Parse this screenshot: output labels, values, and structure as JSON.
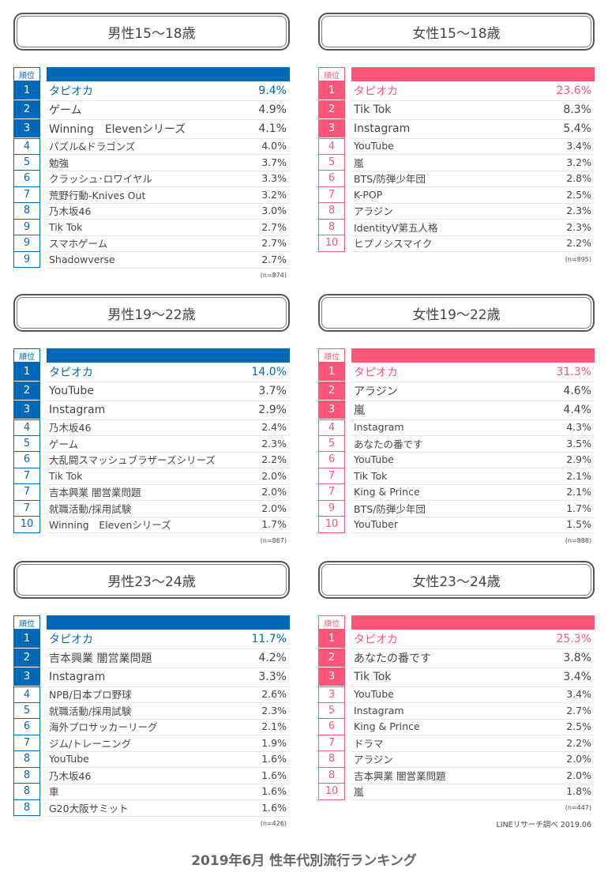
{
  "colors": {
    "male": "#0068b7",
    "female": "#fb5677"
  },
  "rank_header": "順位",
  "panels": [
    {
      "gender": "male",
      "title": "男性15〜18歳",
      "n": "(n=874)",
      "rows": [
        [
          "1",
          "タピオカ",
          "9.4%"
        ],
        [
          "2",
          "ゲーム",
          "4.9%"
        ],
        [
          "3",
          "Winning　Elevenシリーズ",
          "4.1%"
        ],
        [
          "4",
          "パズル&ドラゴンズ",
          "4.0%"
        ],
        [
          "5",
          "勉強",
          "3.7%"
        ],
        [
          "6",
          "クラッシュ･ロワイヤル",
          "3.3%"
        ],
        [
          "7",
          "荒野行動-Knives Out",
          "3.2%"
        ],
        [
          "8",
          "乃木坂46",
          "3.0%"
        ],
        [
          "9",
          "Tik Tok",
          "2.7%"
        ],
        [
          "9",
          "スマホゲーム",
          "2.7%"
        ],
        [
          "9",
          "Shadowverse",
          "2.7%"
        ]
      ]
    },
    {
      "gender": "female",
      "title": "女性15〜18歳",
      "n": "(n=895)",
      "rows": [
        [
          "1",
          "タピオカ",
          "23.6%"
        ],
        [
          "2",
          "Tik Tok",
          "8.3%"
        ],
        [
          "3",
          "Instagram",
          "5.4%"
        ],
        [
          "4",
          "YouTube",
          "3.4%"
        ],
        [
          "5",
          "嵐",
          "3.2%"
        ],
        [
          "6",
          "BTS/防弾少年団",
          "2.8%"
        ],
        [
          "7",
          "K-POP",
          "2.5%"
        ],
        [
          "8",
          "アラジン",
          "2.3%"
        ],
        [
          "8",
          "IdentityV第五人格",
          "2.3%"
        ],
        [
          "10",
          "ヒプノシスマイク",
          "2.2%"
        ]
      ]
    },
    {
      "gender": "male",
      "title": "男性19〜22歳",
      "n": "(n=867)",
      "rows": [
        [
          "1",
          "タピオカ",
          "14.0%"
        ],
        [
          "2",
          "YouTube",
          "3.7%"
        ],
        [
          "3",
          "Instagram",
          "2.9%"
        ],
        [
          "4",
          "乃木坂46",
          "2.4%"
        ],
        [
          "5",
          "ゲーム",
          "2.3%"
        ],
        [
          "6",
          "大乱闘スマッシュブラザーズシリーズ",
          "2.2%"
        ],
        [
          "7",
          "Tik Tok",
          "2.0%"
        ],
        [
          "7",
          "吉本興業 闇営業問題",
          "2.0%"
        ],
        [
          "7",
          "就職活動/採用試験",
          "2.0%"
        ],
        [
          "10",
          "Winning　Elevenシリーズ",
          "1.7%"
        ]
      ]
    },
    {
      "gender": "female",
      "title": "女性19〜22歳",
      "n": "(n=888)",
      "rows": [
        [
          "1",
          "タピオカ",
          "31.3%"
        ],
        [
          "2",
          "アラジン",
          "4.6%"
        ],
        [
          "3",
          "嵐",
          "4.4%"
        ],
        [
          "4",
          "Instagram",
          "4.3%"
        ],
        [
          "5",
          "あなたの番です",
          "3.5%"
        ],
        [
          "6",
          "YouTube",
          "2.9%"
        ],
        [
          "7",
          "Tik Tok",
          "2.1%"
        ],
        [
          "7",
          "King & Prince",
          "2.1%"
        ],
        [
          "9",
          "BTS/防弾少年団",
          "1.7%"
        ],
        [
          "10",
          "YouTuber",
          "1.5%"
        ]
      ]
    },
    {
      "gender": "male",
      "title": "男性23〜24歳",
      "n": "(n=426)",
      "rows": [
        [
          "1",
          "タピオカ",
          "11.7%"
        ],
        [
          "2",
          "吉本興業 闇営業問題",
          "4.2%"
        ],
        [
          "3",
          "Instagram",
          "3.3%"
        ],
        [
          "4",
          "NPB/日本プロ野球",
          "2.6%"
        ],
        [
          "5",
          "就職活動/採用試験",
          "2.3%"
        ],
        [
          "6",
          "海外プロサッカーリーグ",
          "2.1%"
        ],
        [
          "7",
          "ジム/トレーニング",
          "1.9%"
        ],
        [
          "8",
          "YouTube",
          "1.6%"
        ],
        [
          "8",
          "乃木坂46",
          "1.6%"
        ],
        [
          "8",
          "車",
          "1.6%"
        ],
        [
          "8",
          "G20大阪サミット",
          "1.6%"
        ]
      ]
    },
    {
      "gender": "female",
      "title": "女性23〜24歳",
      "n": "(n=447)",
      "rows": [
        [
          "1",
          "タピオカ",
          "25.3%"
        ],
        [
          "2",
          "あなたの番です",
          "3.8%"
        ],
        [
          "3",
          "Tik Tok",
          "3.4%"
        ],
        [
          "3",
          "YouTube",
          "3.4%"
        ],
        [
          "5",
          "Instagram",
          "2.7%"
        ],
        [
          "6",
          "King & Prince",
          "2.5%"
        ],
        [
          "7",
          "ドラマ",
          "2.2%"
        ],
        [
          "8",
          "アラジン",
          "2.0%"
        ],
        [
          "8",
          "吉本興業 闇営業問題",
          "2.0%"
        ],
        [
          "10",
          "嵐",
          "1.8%"
        ]
      ]
    }
  ],
  "credit": "LINEリサーチ調べ 2019.06",
  "footer": "2019年6月 性年代別流行ランキング"
}
